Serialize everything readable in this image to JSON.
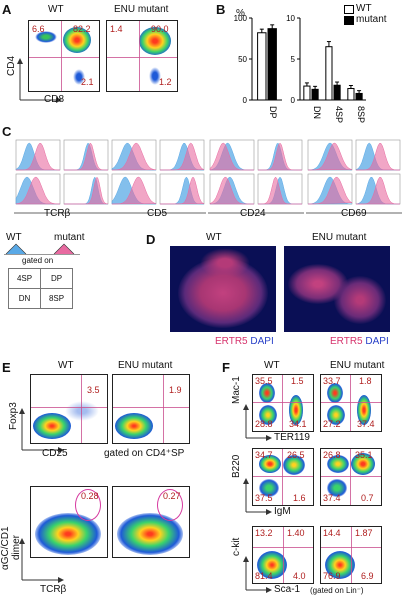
{
  "panel_a": {
    "letter": "A",
    "titles": [
      "WT",
      "ENU mutant"
    ],
    "ylabel": "CD4",
    "xlabel": "CD8",
    "wt_values": {
      "tl": "6.6",
      "tr": "82.2",
      "br": "2.1"
    },
    "mut_values": {
      "tl": "1.4",
      "tr": "90.0",
      "br": "1.2"
    }
  },
  "panel_b": {
    "letter": "B",
    "y_unit": "%",
    "legend": [
      "WT",
      "mutant"
    ],
    "colors": {
      "wt": "#ffffff",
      "mutant": "#000000"
    }
  },
  "chart_data": [
    {
      "type": "bar",
      "categories": [
        "DP"
      ],
      "series": [
        {
          "name": "WT",
          "values": [
            82
          ]
        },
        {
          "name": "mutant",
          "values": [
            87
          ]
        }
      ],
      "ylim": [
        0,
        100
      ],
      "yticks": [
        "0",
        "50",
        "100"
      ],
      "ylabel": "%"
    },
    {
      "type": "bar",
      "categories": [
        "DN",
        "4SP",
        "8SP"
      ],
      "series": [
        {
          "name": "WT",
          "values": [
            1.7,
            6.5,
            1.4
          ]
        },
        {
          "name": "mutant",
          "values": [
            1.3,
            1.8,
            0.8
          ]
        }
      ],
      "ylim": [
        0,
        10
      ],
      "yticks": [
        "0",
        "5",
        "10"
      ]
    }
  ],
  "panel_c": {
    "letter": "C",
    "markers": [
      "TCRβ",
      "CD5",
      "CD24",
      "CD69"
    ],
    "legend_wt": "WT",
    "legend_mut": "mutant",
    "gated_on": "gated on",
    "grid": [
      "4SP",
      "DP",
      "DN",
      "8SP"
    ],
    "colors": {
      "wt": "#5aa9e6",
      "mut": "#e86aa0"
    }
  },
  "panel_d": {
    "letter": "D",
    "titles": [
      "WT",
      "ENU mutant"
    ],
    "stain1": "ERTR5",
    "stain2": "DAPI"
  },
  "panel_e": {
    "letter": "E",
    "titles": [
      "WT",
      "ENU mutant"
    ],
    "top_ylabel": "Foxp3",
    "top_xlabel": "CD25",
    "gate_note": "gated on CD4⁺SP",
    "top_values": [
      "3.5",
      "1.9"
    ],
    "bottom_ylabel1": "αGC/CD1",
    "bottom_ylabel2": "dimer",
    "bottom_xlabel": "TCRβ",
    "bottom_values": [
      "0.28",
      "0.27"
    ]
  },
  "panel_f": {
    "letter": "F",
    "titles": [
      "WT",
      "ENU mutant"
    ],
    "row1": {
      "ylabel": "Mac-1",
      "xlabel": "TER119",
      "wt": [
        "35.5",
        "1.5",
        "28.8",
        "34.1"
      ],
      "mut": [
        "33.7",
        "1.8",
        "27.2",
        "37.4"
      ]
    },
    "row2": {
      "ylabel": "B220",
      "xlabel": "IgM",
      "wt": [
        "34.7",
        "26.5",
        "37.5",
        "1.6"
      ],
      "mut": [
        "26.8",
        "35.1",
        "37.4",
        "0.7"
      ]
    },
    "row3": {
      "ylabel": "c-kit",
      "xlabel": "Sca-1",
      "xnote": "(gated on Lin⁻)",
      "wt": [
        "13.2",
        "1.40",
        "81.4",
        "4.0"
      ],
      "mut": [
        "14.4",
        "1.87",
        "76.9",
        "6.9"
      ]
    }
  }
}
